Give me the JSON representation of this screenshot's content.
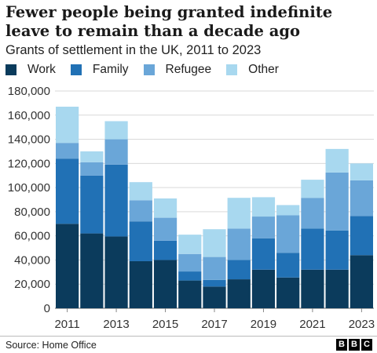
{
  "title": "Fewer people being granted indefinite leave to remain than a decade ago",
  "subtitle": "Grants of settlement in the UK, 2011 to 2023",
  "source": "Source: Home Office",
  "logo_letters": [
    "B",
    "B",
    "C"
  ],
  "chart_data": {
    "type": "bar",
    "stacked": true,
    "categories": [
      "2011",
      "2012",
      "2013",
      "2014",
      "2015",
      "2016",
      "2017",
      "2018",
      "2019",
      "2020",
      "2021",
      "2022",
      "2023"
    ],
    "x_tick_labels": [
      "2011",
      "2013",
      "2015",
      "2017",
      "2019",
      "2021",
      "2023"
    ],
    "ylim": [
      0,
      180000
    ],
    "y_ticks": [
      0,
      20000,
      40000,
      60000,
      80000,
      100000,
      120000,
      140000,
      160000,
      180000
    ],
    "y_tick_labels": [
      "0",
      "20,000",
      "40,000",
      "60,000",
      "80,000",
      "100,000",
      "120,000",
      "140,000",
      "160,000",
      "180,000"
    ],
    "grid": true,
    "legend_position": "top-left",
    "series": [
      {
        "name": "Work",
        "color": "#0b3b5c",
        "values": [
          70000,
          62000,
          59500,
          39000,
          40000,
          23000,
          18000,
          24000,
          32000,
          25500,
          32000,
          32000,
          44000
        ]
      },
      {
        "name": "Family",
        "color": "#2171b5",
        "values": [
          54000,
          48000,
          59500,
          33000,
          16000,
          7500,
          5500,
          16000,
          26000,
          20500,
          34000,
          32500,
          32500
        ]
      },
      {
        "name": "Refugee",
        "color": "#6aa6d8",
        "values": [
          13000,
          11000,
          21000,
          17500,
          19000,
          14500,
          19000,
          26000,
          18000,
          31000,
          25500,
          48000,
          29500
        ]
      },
      {
        "name": "Other",
        "color": "#a8d8ef",
        "values": [
          30000,
          9000,
          15000,
          15000,
          16000,
          16000,
          23000,
          25500,
          16000,
          8500,
          15000,
          19500,
          14000
        ]
      }
    ]
  }
}
